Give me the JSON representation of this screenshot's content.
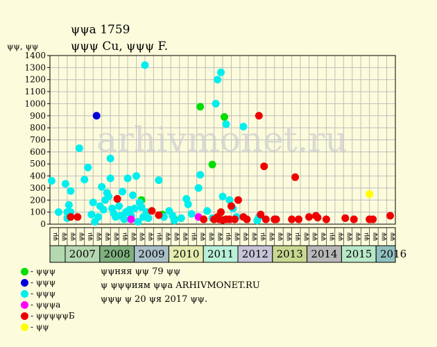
{
  "header": {
    "line1": "ψψa 1759",
    "line2": "ψψψ Cu, ψψψ F."
  },
  "chart_data": {
    "type": "scatter",
    "ylabel": "ψψ, ψψ",
    "ylim": [
      0,
      1400
    ],
    "yticks": [
      0,
      100,
      200,
      300,
      400,
      500,
      600,
      700,
      800,
      900,
      1000,
      1100,
      1200,
      1300,
      1400
    ],
    "x_range": [
      2006.5,
      2016.5
    ],
    "quarter_labels": [
      "ψμ",
      "ψψ",
      "ψψ",
      "ψψ",
      "ψμ",
      "ψψ",
      "ψψ",
      "ψψ",
      "ψμ",
      "ψψ",
      "ψψ",
      "ψψ",
      "ψμ",
      "ψψ",
      "ψψ",
      "ψψ",
      "ψμ",
      "ψψ",
      "ψψ",
      "ψψ",
      "ψμ",
      "ψψ",
      "ψψ",
      "ψψ",
      "ψμ",
      "ψψ",
      "ψψ",
      "ψψ",
      "ψμ",
      "ψψ",
      "ψψ",
      "ψψ",
      "ψμ",
      "ψψ",
      "ψψ",
      "ψψ",
      "ψμ",
      "ψψ",
      "ψψ",
      "ψψ"
    ],
    "years": [
      {
        "label": "2007",
        "x": 2007.5,
        "color": "#b4d8b0"
      },
      {
        "label": "2008",
        "x": 2008.5,
        "color": "#7fb07f"
      },
      {
        "label": "2009",
        "x": 2009.5,
        "color": "#aac0c8"
      },
      {
        "label": "2010",
        "x": 2010.5,
        "color": "#e4ecb0"
      },
      {
        "label": "2011",
        "x": 2011.5,
        "color": "#b8f0d8"
      },
      {
        "label": "2012",
        "x": 2012.5,
        "color": "#c8c4d8"
      },
      {
        "label": "2013",
        "x": 2013.5,
        "color": "#c8d890"
      },
      {
        "label": "2014",
        "x": 2014.5,
        "color": "#b8b8b8"
      },
      {
        "label": "2015",
        "x": 2015.5,
        "color": "#b8e8c8"
      },
      {
        "label": "2016",
        "x": 2016.5,
        "color": "#90c0c0"
      }
    ],
    "watermark": "arhivmonet.ru",
    "series": [
      {
        "name": "- ψψψ",
        "color": "#00dd00",
        "points": [
          [
            2009.15,
            200
          ],
          [
            2010.85,
            975
          ],
          [
            2011.2,
            495
          ],
          [
            2011.55,
            890
          ],
          [
            2009.75,
            80
          ],
          [
            2010.1,
            40
          ]
        ]
      },
      {
        "name": "- ψψψ",
        "color": "#0000dd",
        "points": [
          [
            2007.85,
            900
          ]
        ]
      },
      {
        "name": "- ψψψ",
        "color": "#00eeee",
        "points": [
          [
            2006.55,
            360
          ],
          [
            2006.75,
            100
          ],
          [
            2006.95,
            335
          ],
          [
            2007.0,
            100
          ],
          [
            2007.05,
            160
          ],
          [
            2007.1,
            275
          ],
          [
            2007.0,
            50
          ],
          [
            2007.1,
            100
          ],
          [
            2007.35,
            630
          ],
          [
            2007.5,
            370
          ],
          [
            2007.6,
            470
          ],
          [
            2007.7,
            80
          ],
          [
            2007.75,
            180
          ],
          [
            2007.8,
            20
          ],
          [
            2007.9,
            60
          ],
          [
            2007.95,
            150
          ],
          [
            2008.0,
            310
          ],
          [
            2008.05,
            120
          ],
          [
            2008.1,
            200
          ],
          [
            2008.15,
            260
          ],
          [
            2008.2,
            230
          ],
          [
            2008.25,
            545
          ],
          [
            2008.25,
            380
          ],
          [
            2008.3,
            130
          ],
          [
            2008.35,
            90
          ],
          [
            2008.4,
            60
          ],
          [
            2008.45,
            210
          ],
          [
            2008.5,
            150
          ],
          [
            2008.55,
            70
          ],
          [
            2008.6,
            270
          ],
          [
            2008.65,
            40
          ],
          [
            2008.7,
            100
          ],
          [
            2008.75,
            380
          ],
          [
            2008.8,
            120
          ],
          [
            2008.85,
            70
          ],
          [
            2008.9,
            240
          ],
          [
            2008.95,
            130
          ],
          [
            2009.0,
            400
          ],
          [
            2009.05,
            20
          ],
          [
            2009.1,
            180
          ],
          [
            2009.15,
            140
          ],
          [
            2009.2,
            60
          ],
          [
            2009.25,
            1320
          ],
          [
            2009.3,
            100
          ],
          [
            2009.35,
            50
          ],
          [
            2009.65,
            365
          ],
          [
            2009.8,
            60
          ],
          [
            2009.95,
            110
          ],
          [
            2010.05,
            70
          ],
          [
            2010.1,
            30
          ],
          [
            2010.45,
            210
          ],
          [
            2010.5,
            165
          ],
          [
            2010.6,
            85
          ],
          [
            2010.8,
            300
          ],
          [
            2010.85,
            410
          ],
          [
            2011.05,
            110
          ],
          [
            2011.2,
            50
          ],
          [
            2011.3,
            1000
          ],
          [
            2011.35,
            1200
          ],
          [
            2011.45,
            1260
          ],
          [
            2011.5,
            230
          ],
          [
            2011.6,
            830
          ],
          [
            2011.7,
            200
          ],
          [
            2011.8,
            130
          ],
          [
            2011.9,
            60
          ],
          [
            2012.1,
            810
          ],
          [
            2012.2,
            40
          ],
          [
            2012.5,
            30
          ],
          [
            2012.55,
            60
          ],
          [
            2010.3,
            50
          ]
        ]
      },
      {
        "name": "- ψψψa",
        "color": "#ff00ff",
        "points": [
          [
            2008.85,
            40
          ],
          [
            2010.8,
            60
          ]
        ]
      },
      {
        "name": "- ψψψψψБ",
        "color": "#ee0000",
        "points": [
          [
            2007.1,
            60
          ],
          [
            2007.3,
            60
          ],
          [
            2008.45,
            210
          ],
          [
            2009.45,
            110
          ],
          [
            2009.65,
            75
          ],
          [
            2010.95,
            40
          ],
          [
            2011.25,
            40
          ],
          [
            2011.35,
            60
          ],
          [
            2011.4,
            40
          ],
          [
            2011.45,
            100
          ],
          [
            2011.5,
            35
          ],
          [
            2011.6,
            40
          ],
          [
            2011.7,
            40
          ],
          [
            2011.75,
            150
          ],
          [
            2011.85,
            40
          ],
          [
            2011.95,
            200
          ],
          [
            2012.1,
            60
          ],
          [
            2012.2,
            40
          ],
          [
            2012.55,
            900
          ],
          [
            2012.6,
            80
          ],
          [
            2012.7,
            480
          ],
          [
            2012.75,
            40
          ],
          [
            2013.0,
            40
          ],
          [
            2013.05,
            40
          ],
          [
            2013.5,
            40
          ],
          [
            2013.6,
            390
          ],
          [
            2013.7,
            40
          ],
          [
            2014.0,
            60
          ],
          [
            2014.2,
            70
          ],
          [
            2014.25,
            55
          ],
          [
            2014.5,
            40
          ],
          [
            2015.05,
            50
          ],
          [
            2015.3,
            40
          ],
          [
            2015.75,
            40
          ],
          [
            2015.85,
            40
          ],
          [
            2016.35,
            70
          ]
        ]
      },
      {
        "name": "- ψψ",
        "color": "#ffff00",
        "points": [
          [
            2015.75,
            250
          ]
        ]
      }
    ]
  },
  "notes": {
    "line1": "ψψняя ψψ 79 ψψ",
    "line2": "ψ ψψψиям ψψa ARHIVMONET.RU",
    "line3": "ψψψ ψ 20 ψя 2017 ψψ."
  }
}
